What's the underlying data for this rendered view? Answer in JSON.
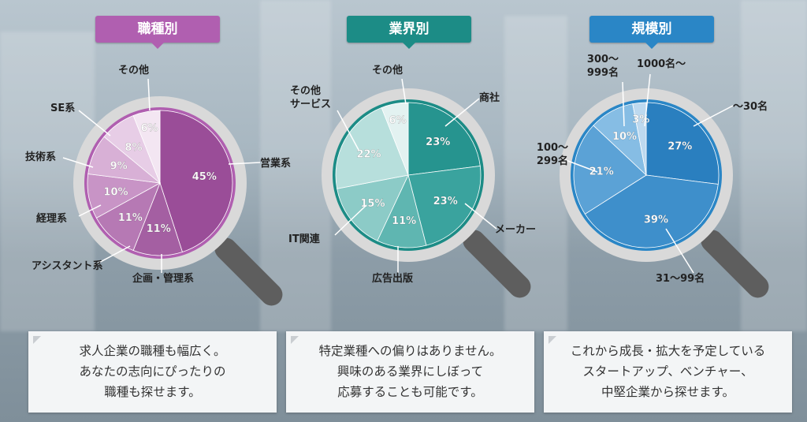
{
  "chart_data": [
    {
      "type": "pie",
      "title": "職種別",
      "categories": [
        "営業系",
        "企画・管理系",
        "アシスタント系",
        "経理系",
        "技術系",
        "SE系",
        "その他"
      ],
      "values": [
        45,
        11,
        11,
        10,
        9,
        8,
        6
      ],
      "value_labels": [
        "45%",
        "11%",
        "11%",
        "10%",
        "9%",
        "8%",
        "6%"
      ],
      "colors": [
        "#9a4d98",
        "#a45fa2",
        "#b679b4",
        "#c894c6",
        "#d8b0d6",
        "#e7cde6",
        "#f3e6f2"
      ],
      "accent": "#b05fb0"
    },
    {
      "type": "pie",
      "title": "業界別",
      "categories": [
        "商社",
        "メーカー",
        "広告出版",
        "IT関連",
        "その他 サービス",
        "その他"
      ],
      "values": [
        23,
        23,
        11,
        15,
        22,
        6
      ],
      "value_labels": [
        "23%",
        "23%",
        "11%",
        "15%",
        "22%",
        "6%"
      ],
      "colors": [
        "#26948f",
        "#3aa39e",
        "#5fb6b1",
        "#8ccbc7",
        "#b7dfdc",
        "#e3f2f1"
      ],
      "accent": "#1c8c86"
    },
    {
      "type": "pie",
      "title": "規模別",
      "categories": [
        "〜30名",
        "31〜99名",
        "100〜 299名",
        "300〜 999名",
        "1000名〜"
      ],
      "values": [
        27,
        39,
        21,
        10,
        3
      ],
      "value_labels": [
        "27%",
        "39%",
        "21%",
        "10%",
        "3%"
      ],
      "colors": [
        "#2a7fbf",
        "#3e8fcb",
        "#5ba2d6",
        "#86bde4",
        "#bdd9ef"
      ],
      "accent": "#2a86c6"
    }
  ],
  "labels": {
    "c1": {
      "eigyo": "営業系",
      "kikaku": "企画・管理系",
      "assistant": "アシスタント系",
      "keiri": "経理系",
      "gijutsu": "技術系",
      "se": "SE系",
      "sonota": "その他"
    },
    "c2": {
      "shosha": "商社",
      "maker": "メーカー",
      "kokoku": "広告出版",
      "it": "IT関連",
      "service1": "その他",
      "service2": "サービス",
      "sonota": "その他"
    },
    "c3": {
      "s30": "〜30名",
      "s99": "31〜99名",
      "s299a": "100〜",
      "s299b": "299名",
      "s999a": "300〜",
      "s999b": "999名",
      "s1000": "1000名〜"
    }
  },
  "cards": [
    {
      "lines": [
        "求人企業の職種も幅広く。",
        "あなたの志向にぴったりの",
        "職種も探せます。"
      ]
    },
    {
      "lines": [
        "特定業種への偏りはありません。",
        "興味のある業界にしぼって",
        "応募することも可能です。"
      ]
    },
    {
      "lines": [
        "これから成長・拡大を予定している",
        "スタートアップ、ベンチャー、",
        "中堅企業から探せます。"
      ]
    }
  ]
}
